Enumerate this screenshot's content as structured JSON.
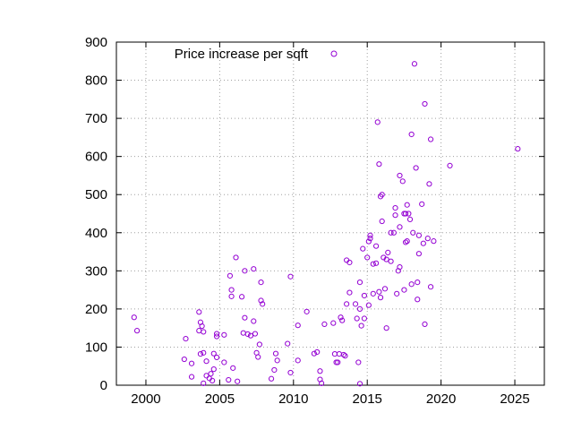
{
  "chart_data": {
    "type": "scatter",
    "series": [
      {
        "name": "Price increase per sqft",
        "color": "#9400d3",
        "marker": "open-circle",
        "points": [
          [
            1999.2,
            178
          ],
          [
            1999.4,
            143
          ],
          [
            2002.6,
            68
          ],
          [
            2002.7,
            122
          ],
          [
            2003.1,
            57
          ],
          [
            2003.1,
            22
          ],
          [
            2003.6,
            192
          ],
          [
            2003.6,
            143
          ],
          [
            2003.7,
            165
          ],
          [
            2003.8,
            155
          ],
          [
            2003.7,
            82
          ],
          [
            2003.9,
            140
          ],
          [
            2003.9,
            5
          ],
          [
            2003.9,
            85
          ],
          [
            2004.1,
            25
          ],
          [
            2004.1,
            63
          ],
          [
            2004.3,
            18
          ],
          [
            2004.4,
            30
          ],
          [
            2004.5,
            12
          ],
          [
            2004.6,
            42
          ],
          [
            2004.6,
            83
          ],
          [
            2004.8,
            135
          ],
          [
            2004.8,
            128
          ],
          [
            2004.8,
            73
          ],
          [
            2005.3,
            132
          ],
          [
            2005.3,
            60
          ],
          [
            2005.6,
            14
          ],
          [
            2005.7,
            287
          ],
          [
            2005.8,
            250
          ],
          [
            2005.8,
            233
          ],
          [
            2005.9,
            45
          ],
          [
            2006.1,
            335
          ],
          [
            2006.2,
            10
          ],
          [
            2006.5,
            232
          ],
          [
            2006.6,
            137
          ],
          [
            2006.7,
            177
          ],
          [
            2006.7,
            300
          ],
          [
            2006.9,
            134
          ],
          [
            2007.1,
            130
          ],
          [
            2007.3,
            168
          ],
          [
            2007.3,
            305
          ],
          [
            2007.4,
            135
          ],
          [
            2007.5,
            85
          ],
          [
            2007.6,
            74
          ],
          [
            2007.7,
            107
          ],
          [
            2007.8,
            222
          ],
          [
            2007.8,
            270
          ],
          [
            2007.9,
            213
          ],
          [
            2008.5,
            17
          ],
          [
            2008.7,
            40
          ],
          [
            2008.8,
            83
          ],
          [
            2008.9,
            65
          ],
          [
            2009.6,
            109
          ],
          [
            2009.8,
            285
          ],
          [
            2009.8,
            33
          ],
          [
            2010.3,
            65
          ],
          [
            2010.3,
            157
          ],
          [
            2010.9,
            193
          ],
          [
            2011.4,
            83
          ],
          [
            2011.6,
            87
          ],
          [
            2011.8,
            37
          ],
          [
            2011.8,
            15
          ],
          [
            2011.9,
            5
          ],
          [
            2012.1,
            160
          ],
          [
            2012.7,
            163
          ],
          [
            2012.8,
            82
          ],
          [
            2012.9,
            60
          ],
          [
            2013.0,
            60
          ],
          [
            2013.1,
            82
          ],
          [
            2013.2,
            178
          ],
          [
            2013.3,
            170
          ],
          [
            2013.4,
            80
          ],
          [
            2013.5,
            77
          ],
          [
            2013.6,
            213
          ],
          [
            2013.6,
            328
          ],
          [
            2013.8,
            322
          ],
          [
            2013.8,
            243
          ],
          [
            2014.2,
            213
          ],
          [
            2014.3,
            175
          ],
          [
            2014.4,
            60
          ],
          [
            2014.5,
            200
          ],
          [
            2014.5,
            4
          ],
          [
            2014.5,
            270
          ],
          [
            2014.6,
            156
          ],
          [
            2014.7,
            358
          ],
          [
            2014.8,
            175
          ],
          [
            2014.8,
            235
          ],
          [
            2015.0,
            335
          ],
          [
            2015.1,
            210
          ],
          [
            2015.1,
            377
          ],
          [
            2015.2,
            385
          ],
          [
            2015.2,
            393
          ],
          [
            2015.4,
            318
          ],
          [
            2015.4,
            240
          ],
          [
            2015.6,
            320
          ],
          [
            2015.6,
            365
          ],
          [
            2015.7,
            690
          ],
          [
            2015.8,
            580
          ],
          [
            2015.8,
            245
          ],
          [
            2015.9,
            495
          ],
          [
            2015.9,
            230
          ],
          [
            2016.0,
            500
          ],
          [
            2016.0,
            430
          ],
          [
            2016.1,
            335
          ],
          [
            2016.2,
            253
          ],
          [
            2016.3,
            330
          ],
          [
            2016.3,
            150
          ],
          [
            2016.4,
            348
          ],
          [
            2016.6,
            400
          ],
          [
            2016.6,
            325
          ],
          [
            2016.8,
            400
          ],
          [
            2016.9,
            446
          ],
          [
            2016.9,
            465
          ],
          [
            2017.0,
            240
          ],
          [
            2017.1,
            300
          ],
          [
            2017.2,
            310
          ],
          [
            2017.2,
            550
          ],
          [
            2017.2,
            415
          ],
          [
            2017.4,
            535
          ],
          [
            2017.5,
            450
          ],
          [
            2017.5,
            250
          ],
          [
            2017.6,
            375
          ],
          [
            2017.6,
            450
          ],
          [
            2017.7,
            473
          ],
          [
            2017.7,
            378
          ],
          [
            2017.8,
            450
          ],
          [
            2017.9,
            435
          ],
          [
            2018.0,
            658
          ],
          [
            2018.0,
            265
          ],
          [
            2018.1,
            400
          ],
          [
            2018.2,
            843
          ],
          [
            2018.3,
            570
          ],
          [
            2018.4,
            225
          ],
          [
            2018.4,
            270
          ],
          [
            2018.5,
            393
          ],
          [
            2018.5,
            345
          ],
          [
            2018.7,
            475
          ],
          [
            2018.8,
            372
          ],
          [
            2018.9,
            160
          ],
          [
            2018.9,
            738
          ],
          [
            2019.1,
            385
          ],
          [
            2019.2,
            528
          ],
          [
            2019.3,
            645
          ],
          [
            2019.3,
            258
          ],
          [
            2019.5,
            378
          ],
          [
            2020.6,
            576
          ],
          [
            2025.2,
            620
          ]
        ]
      }
    ],
    "title": "",
    "xlabel": "",
    "ylabel": "",
    "xlim": [
      1998,
      2027
    ],
    "ylim": [
      0,
      900
    ],
    "xticks": [
      2000,
      2005,
      2010,
      2015,
      2020,
      2025
    ],
    "yticks": [
      0,
      100,
      200,
      300,
      400,
      500,
      600,
      700,
      800,
      900
    ],
    "grid": true,
    "legend_position": "top-left"
  }
}
